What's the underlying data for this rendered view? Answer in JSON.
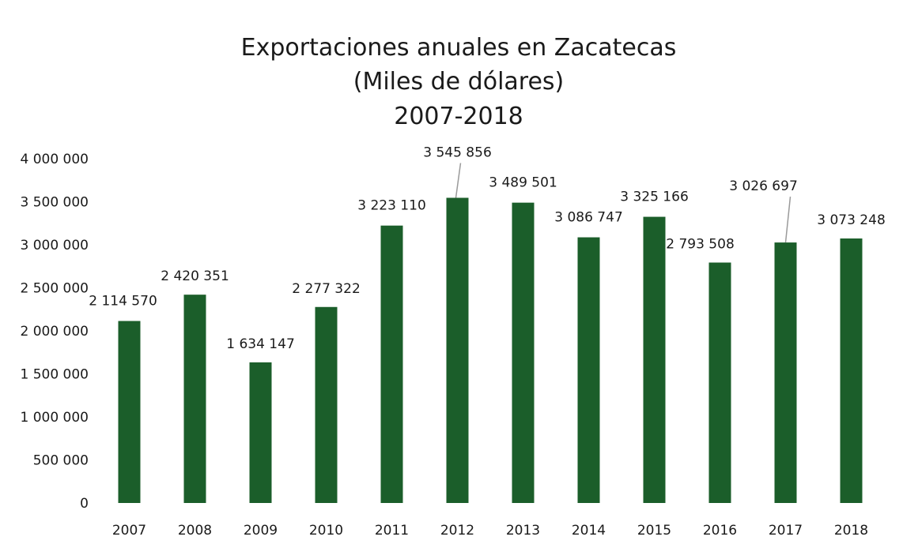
{
  "chart_data": {
    "type": "bar",
    "title_lines": [
      "Exportaciones anuales en Zacatecas",
      "(Miles de dólares)",
      "2007-2018"
    ],
    "xlabel": "",
    "ylabel": "",
    "categories": [
      "2007",
      "2008",
      "2009",
      "2010",
      "2011",
      "2012",
      "2013",
      "2014",
      "2015",
      "2016",
      "2017",
      "2018"
    ],
    "series": [
      {
        "values": [
          2114570,
          2420351,
          1634147,
          2277322,
          3223110,
          3545856,
          3489501,
          3086747,
          3325166,
          2793508,
          3026697,
          3073248
        ]
      }
    ],
    "data_labels": [
      "2 114 570",
      "2 420 351",
      "1 634 147",
      "2 277 322",
      "3 223 110",
      "3 545 856",
      "3 489 501",
      "3 086 747",
      "3 325 166",
      "2 793 508",
      "3 026 697",
      "3 073 248"
    ],
    "yticks": [
      {
        "value": 0,
        "label": "0"
      },
      {
        "value": 500000,
        "label": "500 000"
      },
      {
        "value": 1000000,
        "label": "1 000 000"
      },
      {
        "value": 1500000,
        "label": "1 500 000"
      },
      {
        "value": 2000000,
        "label": "2 000 000"
      },
      {
        "value": 2500000,
        "label": "2 500 000"
      },
      {
        "value": 3000000,
        "label": "3 000 000"
      },
      {
        "value": 3500000,
        "label": "3 500 000"
      },
      {
        "value": 4000000,
        "label": "4 000 000"
      }
    ],
    "ylim": [
      0,
      4000000
    ],
    "grid": false,
    "legend": "none",
    "colors": {
      "bar": "#1b5e2a",
      "text": "#1a1a1a",
      "leader_line": "#9a9a9a"
    }
  }
}
